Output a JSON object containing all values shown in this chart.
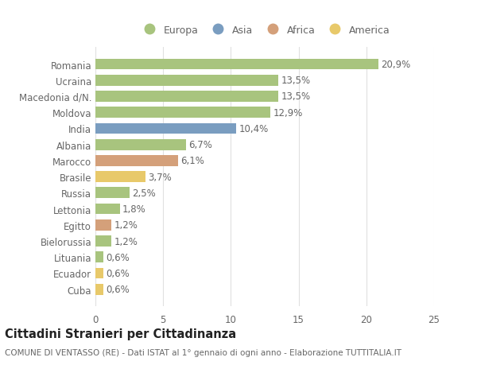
{
  "categories": [
    "Romania",
    "Ucraina",
    "Macedonia d/N.",
    "Moldova",
    "India",
    "Albania",
    "Marocco",
    "Brasile",
    "Russia",
    "Lettonia",
    "Egitto",
    "Bielorussia",
    "Lituania",
    "Ecuador",
    "Cuba"
  ],
  "values": [
    20.9,
    13.5,
    13.5,
    12.9,
    10.4,
    6.7,
    6.1,
    3.7,
    2.5,
    1.8,
    1.2,
    1.2,
    0.6,
    0.6,
    0.6
  ],
  "labels": [
    "20,9%",
    "13,5%",
    "13,5%",
    "12,9%",
    "10,4%",
    "6,7%",
    "6,1%",
    "3,7%",
    "2,5%",
    "1,8%",
    "1,2%",
    "1,2%",
    "0,6%",
    "0,6%",
    "0,6%"
  ],
  "colors": [
    "#a8c47e",
    "#a8c47e",
    "#a8c47e",
    "#a8c47e",
    "#7a9dc0",
    "#a8c47e",
    "#d4a07a",
    "#e8c96a",
    "#a8c47e",
    "#a8c47e",
    "#d4a07a",
    "#a8c47e",
    "#a8c47e",
    "#e8c96a",
    "#e8c96a"
  ],
  "legend_labels": [
    "Europa",
    "Asia",
    "Africa",
    "America"
  ],
  "legend_colors": [
    "#a8c47e",
    "#7a9dc0",
    "#d4a07a",
    "#e8c96a"
  ],
  "xlim": [
    0,
    25
  ],
  "xticks": [
    0,
    5,
    10,
    15,
    20,
    25
  ],
  "title": "Cittadini Stranieri per Cittadinanza",
  "subtitle": "COMUNE DI VENTASSO (RE) - Dati ISTAT al 1° gennaio di ogni anno - Elaborazione TUTTITALIA.IT",
  "background_color": "#ffffff",
  "grid_color": "#e0e0e0",
  "text_color": "#666666",
  "label_fontsize": 8.5,
  "tick_fontsize": 8.5,
  "title_fontsize": 10.5,
  "subtitle_fontsize": 7.5
}
